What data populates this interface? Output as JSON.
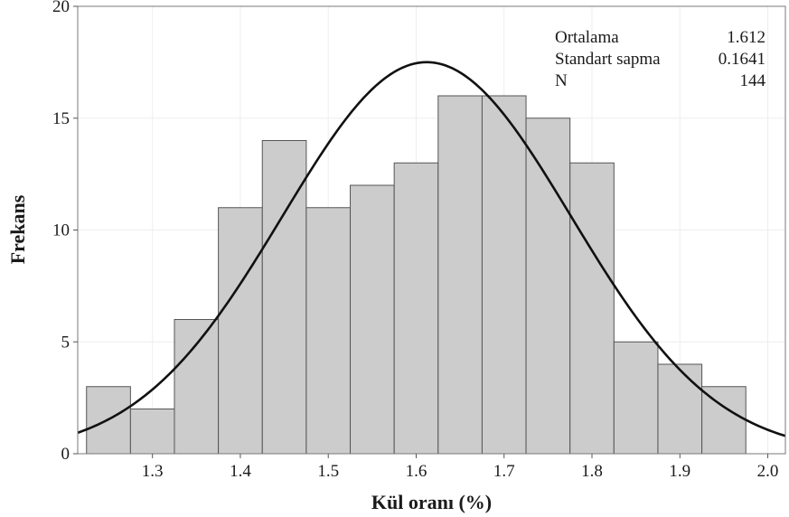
{
  "chart_data": {
    "type": "bar",
    "subtype": "histogram_with_normal_fit",
    "xlabel": "Kül oranı (%)",
    "ylabel": "Frekans",
    "xlim": [
      1.215,
      2.02
    ],
    "ylim": [
      0,
      20
    ],
    "x_ticks": [
      "1.3",
      "1.4",
      "1.5",
      "1.6",
      "1.7",
      "1.8",
      "1.9",
      "2.0"
    ],
    "y_ticks": [
      "0",
      "5",
      "10",
      "15",
      "20"
    ],
    "bin_width": 0.05,
    "bins": [
      {
        "start": 1.225,
        "end": 1.275,
        "count": 3
      },
      {
        "start": 1.275,
        "end": 1.325,
        "count": 2
      },
      {
        "start": 1.325,
        "end": 1.375,
        "count": 6
      },
      {
        "start": 1.375,
        "end": 1.425,
        "count": 11
      },
      {
        "start": 1.425,
        "end": 1.475,
        "count": 14
      },
      {
        "start": 1.475,
        "end": 1.525,
        "count": 11
      },
      {
        "start": 1.525,
        "end": 1.575,
        "count": 12
      },
      {
        "start": 1.575,
        "end": 1.625,
        "count": 13
      },
      {
        "start": 1.625,
        "end": 1.675,
        "count": 16
      },
      {
        "start": 1.675,
        "end": 1.725,
        "count": 16
      },
      {
        "start": 1.725,
        "end": 1.775,
        "count": 15
      },
      {
        "start": 1.775,
        "end": 1.825,
        "count": 13
      },
      {
        "start": 1.825,
        "end": 1.875,
        "count": 5
      },
      {
        "start": 1.875,
        "end": 1.925,
        "count": 4
      },
      {
        "start": 1.925,
        "end": 1.975,
        "count": 3
      }
    ],
    "normal_fit": {
      "mean": 1.612,
      "sd": 0.1641,
      "n": 144
    },
    "stats": [
      {
        "label": "Ortalama",
        "value": "1.612"
      },
      {
        "label": "Standart sapma",
        "value": "0.1641"
      },
      {
        "label": "N",
        "value": "144"
      }
    ],
    "grid": true,
    "legend_position": "top-right",
    "colors": {
      "bar_fill": "#cccccc",
      "bar_stroke": "#555555",
      "curve": "#111111",
      "grid": "#eeeeee",
      "frame": "#7a7a7a"
    }
  }
}
